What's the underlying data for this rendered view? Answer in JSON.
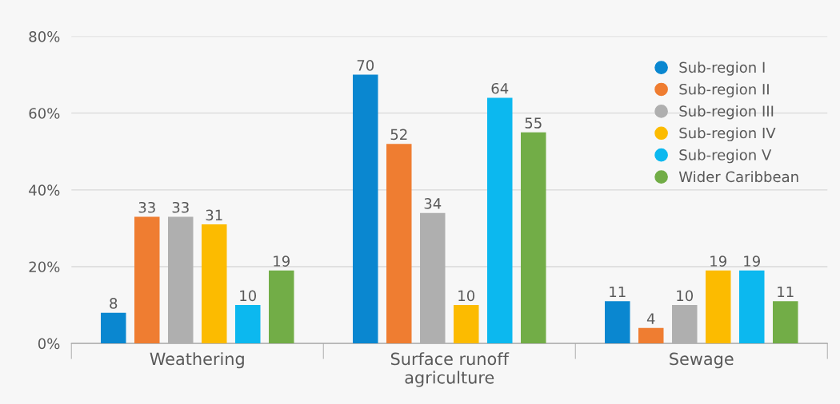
{
  "chart_data": {
    "type": "bar",
    "categories": [
      "Weathering",
      "Surface runoff\nagriculture",
      "Sewage"
    ],
    "series": [
      {
        "name": "Sub-region I",
        "color": "#0a87d0",
        "values": [
          8,
          70,
          11
        ]
      },
      {
        "name": "Sub-region II",
        "color": "#ef7d31",
        "values": [
          33,
          52,
          4
        ]
      },
      {
        "name": "Sub-region III",
        "color": "#afafaf",
        "values": [
          33,
          34,
          10
        ]
      },
      {
        "name": "Sub-region IV",
        "color": "#fcbb00",
        "values": [
          31,
          10,
          19
        ]
      },
      {
        "name": "Sub-region V",
        "color": "#0cb8ef",
        "values": [
          10,
          64,
          19
        ]
      },
      {
        "name": "Wider Caribbean",
        "color": "#72ad47",
        "values": [
          19,
          55,
          11
        ]
      }
    ],
    "ylim": [
      0,
      80
    ],
    "yticks": [
      {
        "value": 0,
        "label": "0%"
      },
      {
        "value": 20,
        "label": "20%"
      },
      {
        "value": 40,
        "label": "40%"
      },
      {
        "value": 60,
        "label": "60%"
      },
      {
        "value": 80,
        "label": "80%"
      }
    ],
    "grid": "y",
    "legend": "top right",
    "data_labels": true
  }
}
